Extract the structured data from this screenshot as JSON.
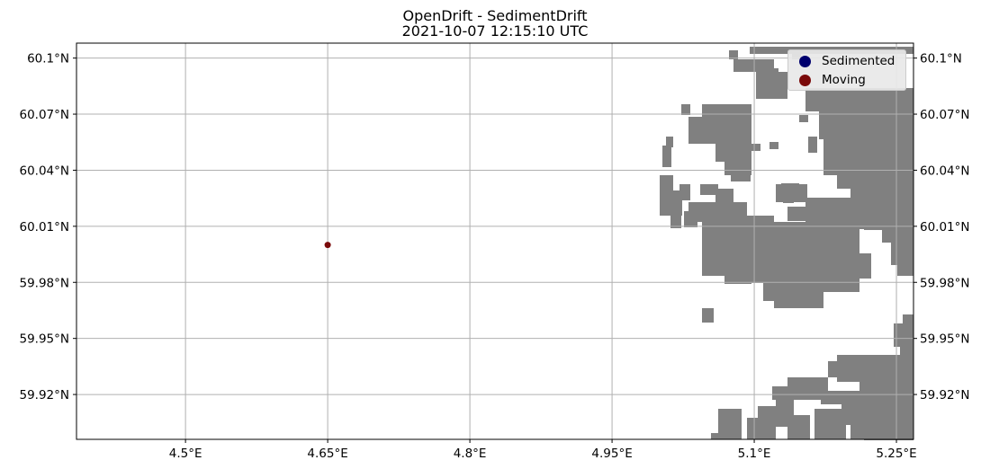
{
  "title": {
    "line1": "OpenDrift - SedimentDrift",
    "line2": "2021-10-07 12:15:10 UTC"
  },
  "axes": {
    "x_ticks": [
      "4.5°E",
      "4.65°E",
      "4.8°E",
      "4.95°E",
      "5.1°E",
      "5.25°E"
    ],
    "y_ticks": [
      "60.1°N",
      "60.07°N",
      "60.04°N",
      "60.01°N",
      "59.98°N",
      "59.95°N",
      "59.92°N"
    ],
    "x_values": [
      4.5,
      4.65,
      4.8,
      4.95,
      5.1,
      5.25
    ],
    "y_values": [
      60.1,
      60.07,
      60.04,
      60.01,
      59.98,
      59.95,
      59.92
    ],
    "lon_range": [
      4.385,
      5.268
    ],
    "lat_range": [
      59.896,
      60.108
    ],
    "grid": true,
    "ticks_on_right": true
  },
  "legend": {
    "position": "top-right",
    "items": [
      {
        "label": "Sedimented",
        "color": "#00006e"
      },
      {
        "label": "Moving",
        "color": "#7a0a0a"
      }
    ]
  },
  "particles": [
    {
      "lon": 4.65,
      "lat": 60.0,
      "status": "Moving"
    }
  ],
  "colors": {
    "land": "#808080",
    "grid": "#b0b0b0",
    "moving": "#7a0a0a",
    "sedimented": "#00006e"
  }
}
